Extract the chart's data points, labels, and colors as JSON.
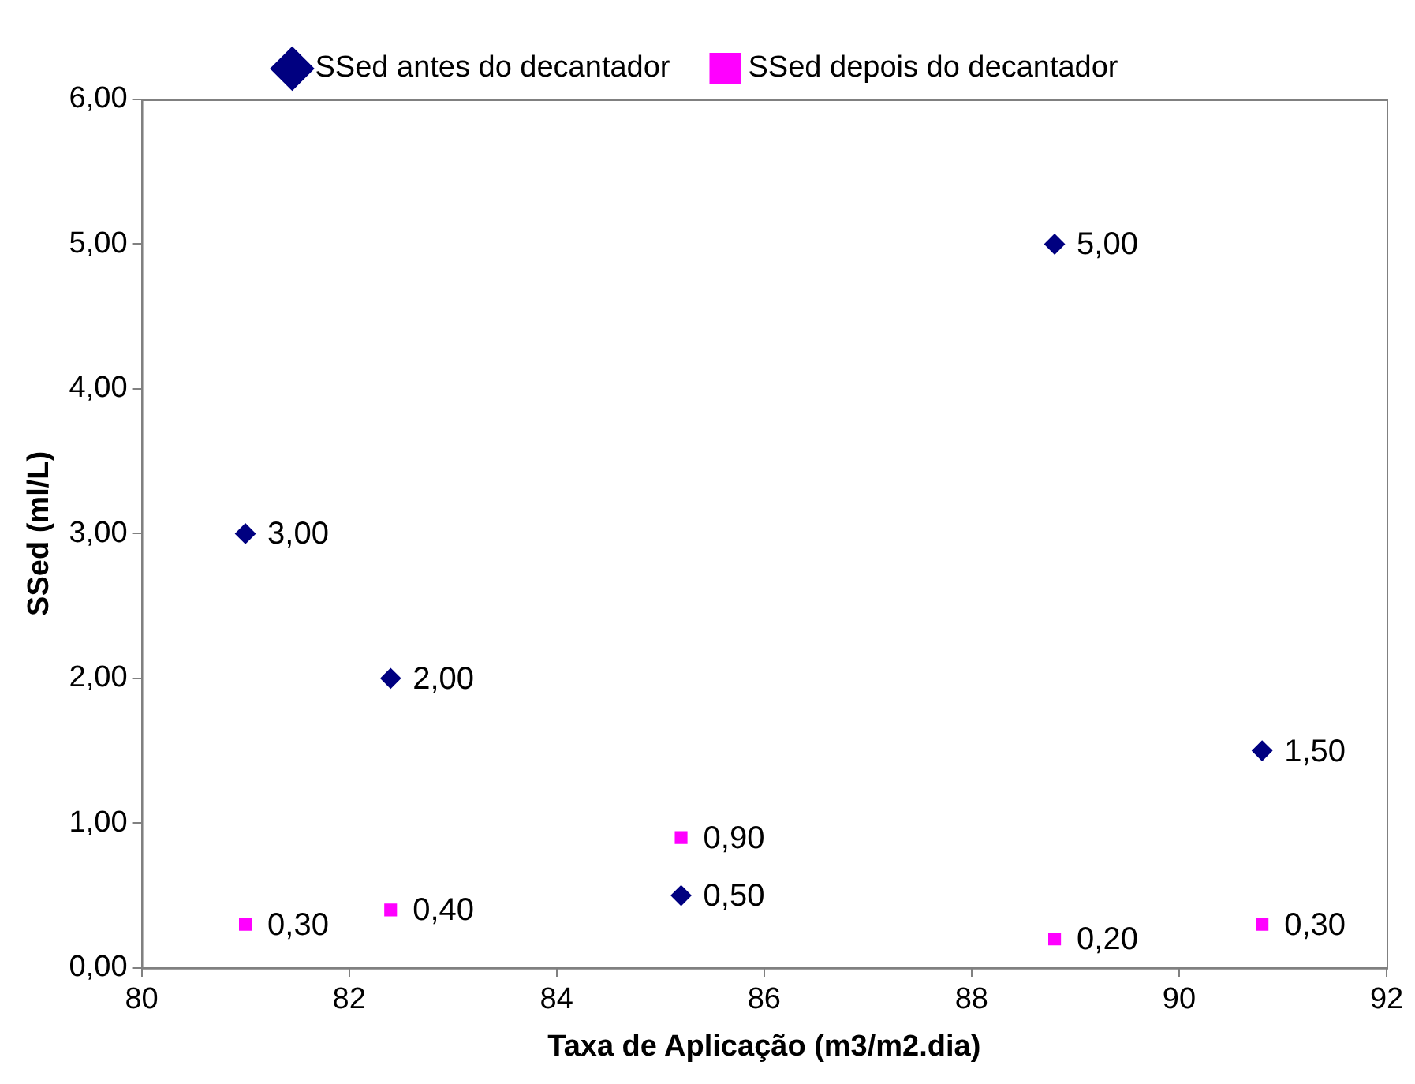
{
  "chart_data": {
    "type": "scatter",
    "xlabel": "Taxa de Aplicação (m3/m2.dia)",
    "ylabel": "SSed (ml/L)",
    "x": [
      81.0,
      82.4,
      85.2,
      88.8,
      90.8
    ],
    "series": [
      {
        "name": "SSed antes do decantador",
        "color": "#000080",
        "marker": "diamond",
        "values": [
          3.0,
          2.0,
          0.5,
          5.0,
          1.5
        ],
        "value_labels": [
          "3,00",
          "2,00",
          "0,50",
          "5,00",
          "1,50"
        ]
      },
      {
        "name": "SSed depois do decantador",
        "color": "#ff00ff",
        "marker": "square",
        "values": [
          0.3,
          0.4,
          0.9,
          0.2,
          0.3
        ],
        "value_labels": [
          "0,30",
          "0,40",
          "0,90",
          "0,20",
          "0,30"
        ]
      }
    ],
    "xlim": [
      80,
      92
    ],
    "xticks": [
      80,
      82,
      84,
      86,
      88,
      90,
      92
    ],
    "ylim": [
      0,
      6
    ],
    "yticks": [
      {
        "value": 0,
        "label": "0,00"
      },
      {
        "value": 1,
        "label": "1,00"
      },
      {
        "value": 2,
        "label": "2,00"
      },
      {
        "value": 3,
        "label": "3,00"
      },
      {
        "value": 4,
        "label": "4,00"
      },
      {
        "value": 5,
        "label": "5,00"
      },
      {
        "value": 6,
        "label": "6,00"
      }
    ],
    "grid": false,
    "legend": "top"
  }
}
